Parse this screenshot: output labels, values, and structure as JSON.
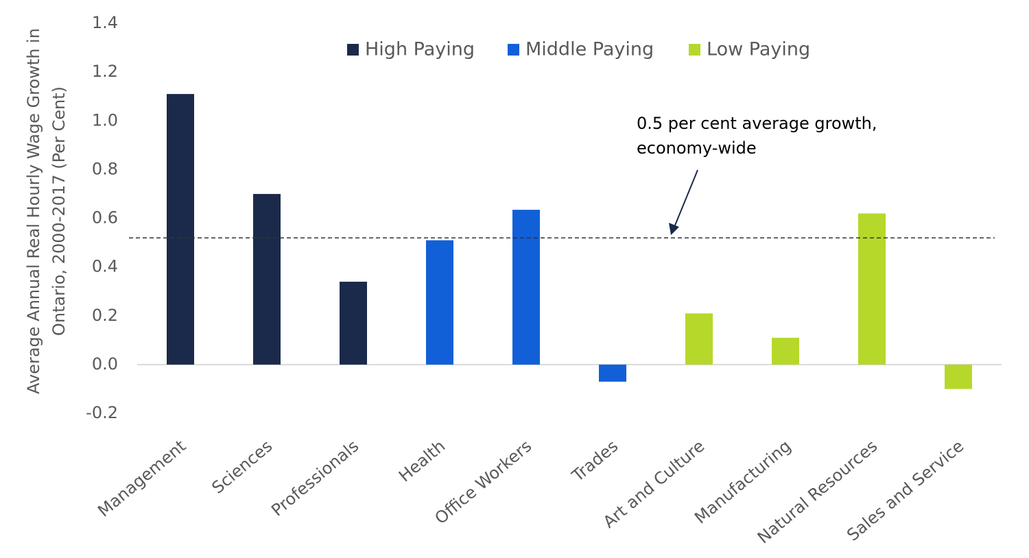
{
  "chart_data": {
    "type": "bar",
    "y_label": [
      "Average Annual Real Hourly Wage Growth in",
      "Ontario, 2000-2017 (Per Cent)"
    ],
    "categories": [
      "Management",
      "Sciences",
      "Professionals",
      "Health",
      "Office Workers",
      "Trades",
      "Art and Culture",
      "Manufacturing",
      "Natural Resources",
      "Sales and Service"
    ],
    "series": [
      {
        "name": "High Paying",
        "color": "#1b2a4a",
        "values": [
          1.11,
          0.7,
          0.34,
          null,
          null,
          null,
          null,
          null,
          null,
          null
        ]
      },
      {
        "name": "Middle Paying",
        "color": "#1160d8",
        "values": [
          null,
          null,
          null,
          0.51,
          0.635,
          -0.07,
          null,
          null,
          null,
          null
        ]
      },
      {
        "name": "Low Paying",
        "color": "#b5d82a",
        "values": [
          null,
          null,
          null,
          null,
          null,
          null,
          0.21,
          0.11,
          0.62,
          -0.1
        ]
      }
    ],
    "ylim": [
      -0.2,
      1.4
    ],
    "yticks": [
      -0.2,
      {
        "value": 0,
        "label": "0.0"
      },
      0.2,
      0.4,
      0.6,
      0.8,
      {
        "value": 1,
        "label": "1.0"
      },
      1.2,
      1.4
    ],
    "reference_line": 0.52,
    "annotation": [
      "0.5 per cent average growth,",
      "economy-wide"
    ],
    "legend": "top"
  }
}
